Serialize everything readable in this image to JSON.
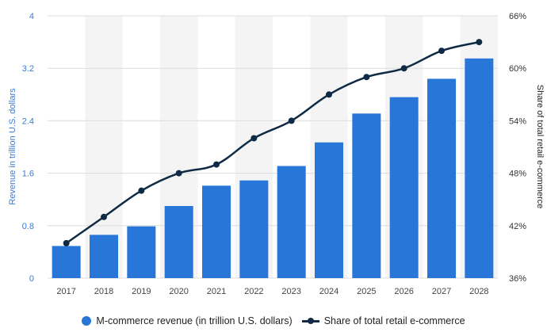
{
  "chart_data": {
    "type": "bar",
    "categories": [
      "2017",
      "2018",
      "2019",
      "2020",
      "2021",
      "2022",
      "2023",
      "2024",
      "2025",
      "2026",
      "2027",
      "2028"
    ],
    "series": [
      {
        "name": "M-commerce revenue (in trillion U.S. dollars)",
        "type": "bar",
        "axis": "left",
        "color": "#2876d8",
        "values": [
          0.49,
          0.66,
          0.79,
          1.1,
          1.41,
          1.49,
          1.71,
          2.07,
          2.51,
          2.76,
          3.04,
          3.35
        ]
      },
      {
        "name": "Share of total retail e-commerce",
        "type": "line",
        "axis": "right",
        "color": "#0f2a44",
        "values": [
          40,
          43,
          46,
          48,
          49,
          52,
          54,
          57,
          59,
          60,
          62,
          63
        ]
      }
    ],
    "left_axis": {
      "label": "Revenue in trillion U.S. dollars",
      "ylim": [
        0,
        4
      ],
      "ticks": [
        0,
        0.8,
        1.6,
        2.4,
        3.2,
        4
      ],
      "tick_labels": [
        "0",
        "0.8",
        "1.6",
        "2.4",
        "3.2",
        "4"
      ]
    },
    "right_axis": {
      "label": "Share of total retail e-commerce",
      "ylim": [
        36,
        66
      ],
      "ticks": [
        36,
        42,
        48,
        54,
        60,
        66
      ],
      "tick_labels": [
        "36%",
        "42%",
        "48%",
        "54%",
        "60%",
        "66%"
      ]
    },
    "grid": true,
    "legend_position": "bottom-center"
  },
  "legend": {
    "items": [
      {
        "label": "M-commerce revenue (in trillion U.S. dollars)",
        "color": "#2876d8"
      },
      {
        "label": "Share of total retail e-commerce",
        "color": "#0f2a44"
      }
    ]
  }
}
